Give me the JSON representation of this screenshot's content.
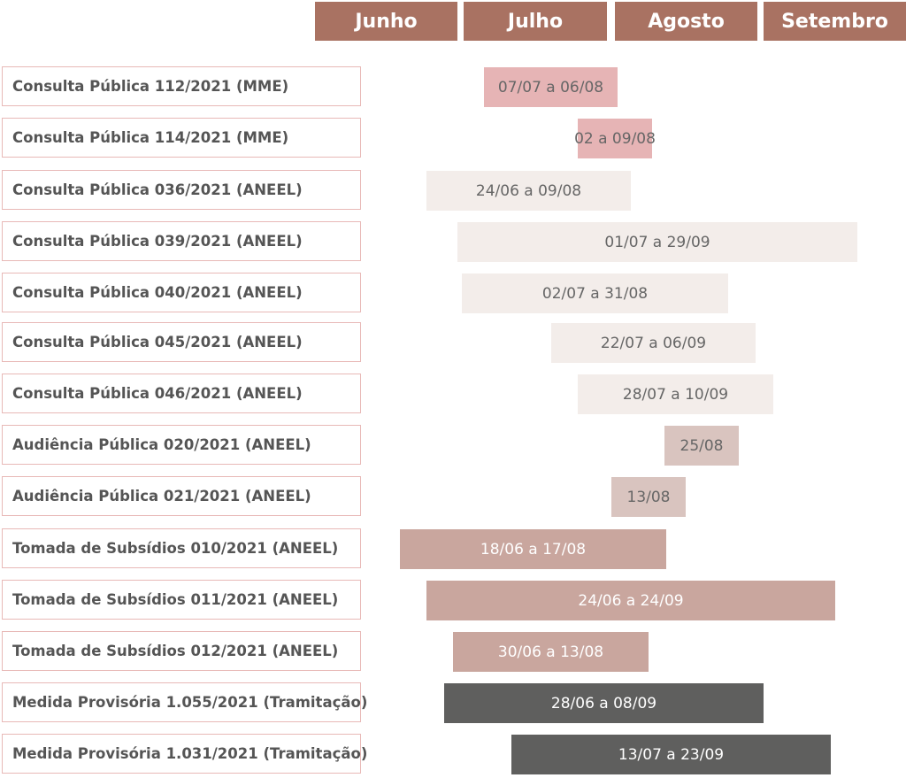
{
  "colors": {
    "month_header": "#a97262",
    "pink": "#e6b4b5",
    "light": "#f3edea",
    "taupe": "#d9c4bf",
    "mauve": "#c9a69e",
    "dark": "#5f5f5e"
  },
  "chart_data": {
    "type": "gantt",
    "months": [
      "Junho",
      "Julho",
      "Agosto",
      "Setembro"
    ],
    "tasks": [
      {
        "label": "Consulta Pública 112/2021 (MME)",
        "range": "07/07 a 06/08",
        "start": "2021-07-07",
        "end": "2021-08-06",
        "color": "pink",
        "text_color": "#666666"
      },
      {
        "label": "Consulta Pública 114/2021 (MME)",
        "range": "02 a 09/08",
        "start": "2021-08-02",
        "end": "2021-08-09",
        "color": "pink",
        "text_color": "#666666"
      },
      {
        "label": "Consulta Pública 036/2021 (ANEEL)",
        "range": "24/06 a 09/08",
        "start": "2021-06-24",
        "end": "2021-08-09",
        "color": "light",
        "text_color": "#666666"
      },
      {
        "label": "Consulta Pública 039/2021 (ANEEL)",
        "range": "01/07 a 29/09",
        "start": "2021-07-01",
        "end": "2021-09-29",
        "color": "light",
        "text_color": "#666666"
      },
      {
        "label": "Consulta Pública 040/2021 (ANEEL)",
        "range": "02/07 a 31/08",
        "start": "2021-07-02",
        "end": "2021-08-31",
        "color": "light",
        "text_color": "#666666"
      },
      {
        "label": "Consulta Pública 045/2021 (ANEEL)",
        "range": "22/07 a 06/09",
        "start": "2021-07-22",
        "end": "2021-09-06",
        "color": "light",
        "text_color": "#666666"
      },
      {
        "label": "Consulta Pública 046/2021 (ANEEL)",
        "range": "28/07 a 10/09",
        "start": "2021-07-28",
        "end": "2021-09-10",
        "color": "light",
        "text_color": "#666666"
      },
      {
        "label": "Audiência Pública 020/2021 (ANEEL)",
        "range": "25/08",
        "start": "2021-08-25",
        "end": "2021-08-25",
        "color": "taupe",
        "text_color": "#666666"
      },
      {
        "label": "Audiência Pública 021/2021 (ANEEL)",
        "range": "13/08",
        "start": "2021-08-13",
        "end": "2021-08-13",
        "color": "taupe",
        "text_color": "#666666"
      },
      {
        "label": "Tomada  de Subsídios 010/2021 (ANEEL)",
        "range": "18/06 a 17/08",
        "start": "2021-06-18",
        "end": "2021-08-17",
        "color": "mauve",
        "text_color": "#ffffff"
      },
      {
        "label": "Tomada de Subsídios 011/2021 (ANEEL)",
        "range": "24/06 a 24/09",
        "start": "2021-06-24",
        "end": "2021-09-24",
        "color": "mauve",
        "text_color": "#ffffff"
      },
      {
        "label": "Tomada de Subsídios 012/2021 (ANEEL)",
        "range": "30/06 a 13/08",
        "start": "2021-06-30",
        "end": "2021-08-13",
        "color": "mauve",
        "text_color": "#ffffff"
      },
      {
        "label": "Medida Provisória 1.055/2021 (Tramitação)",
        "range": "28/06 a 08/09",
        "start": "2021-06-28",
        "end": "2021-09-08",
        "color": "dark",
        "text_color": "#ffffff"
      },
      {
        "label": "Medida Provisória 1.031/2021 (Tramitação)",
        "range": "13/07 a 23/09",
        "start": "2021-07-13",
        "end": "2021-09-23",
        "color": "dark",
        "text_color": "#ffffff"
      }
    ]
  }
}
